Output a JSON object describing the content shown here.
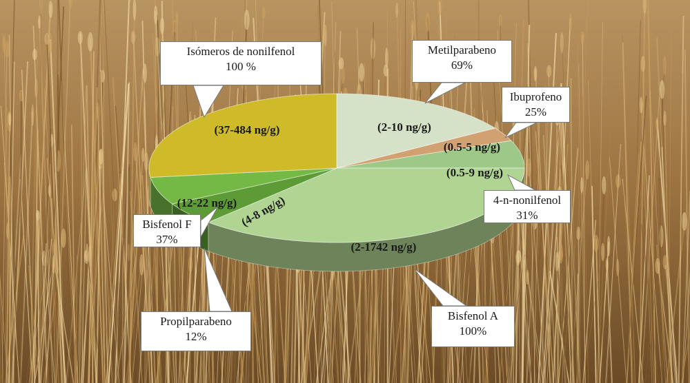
{
  "chart_data": {
    "type": "pie",
    "title": "",
    "slices": [
      {
        "name": "Metilparabeno",
        "frequency": "69%",
        "range": "(2-10 ng/g)",
        "value": 16,
        "color": "#d6e2c8"
      },
      {
        "name": "Ibuprofeno",
        "frequency": "25%",
        "range": "(0.5-5 ng/g)",
        "value": 3,
        "color": "#d2a172"
      },
      {
        "name": "4-n-nonilfenol",
        "frequency": "31%",
        "range": "(0.5-9 ng/g)",
        "value": 6,
        "color": "#9ec887"
      },
      {
        "name": "Bisfenol A",
        "frequency": "100%",
        "range": "(2-1742 ng/g)",
        "value": 37,
        "color": "#b0d592"
      },
      {
        "name": "Propilparabeno",
        "frequency": "12%",
        "range": "(4-8 ng/g)",
        "value": 5,
        "color": "#5c9b35"
      },
      {
        "name": "Bisfenol F",
        "frequency": "37%",
        "range": "(12-22 ng/g)",
        "value": 6,
        "color": "#74b845"
      },
      {
        "name": "Isómeros de nonilfenol",
        "frequency": "100 %",
        "range": "(37-484 ng/g)",
        "value": 27,
        "color": "#cfbb2a"
      }
    ]
  }
}
